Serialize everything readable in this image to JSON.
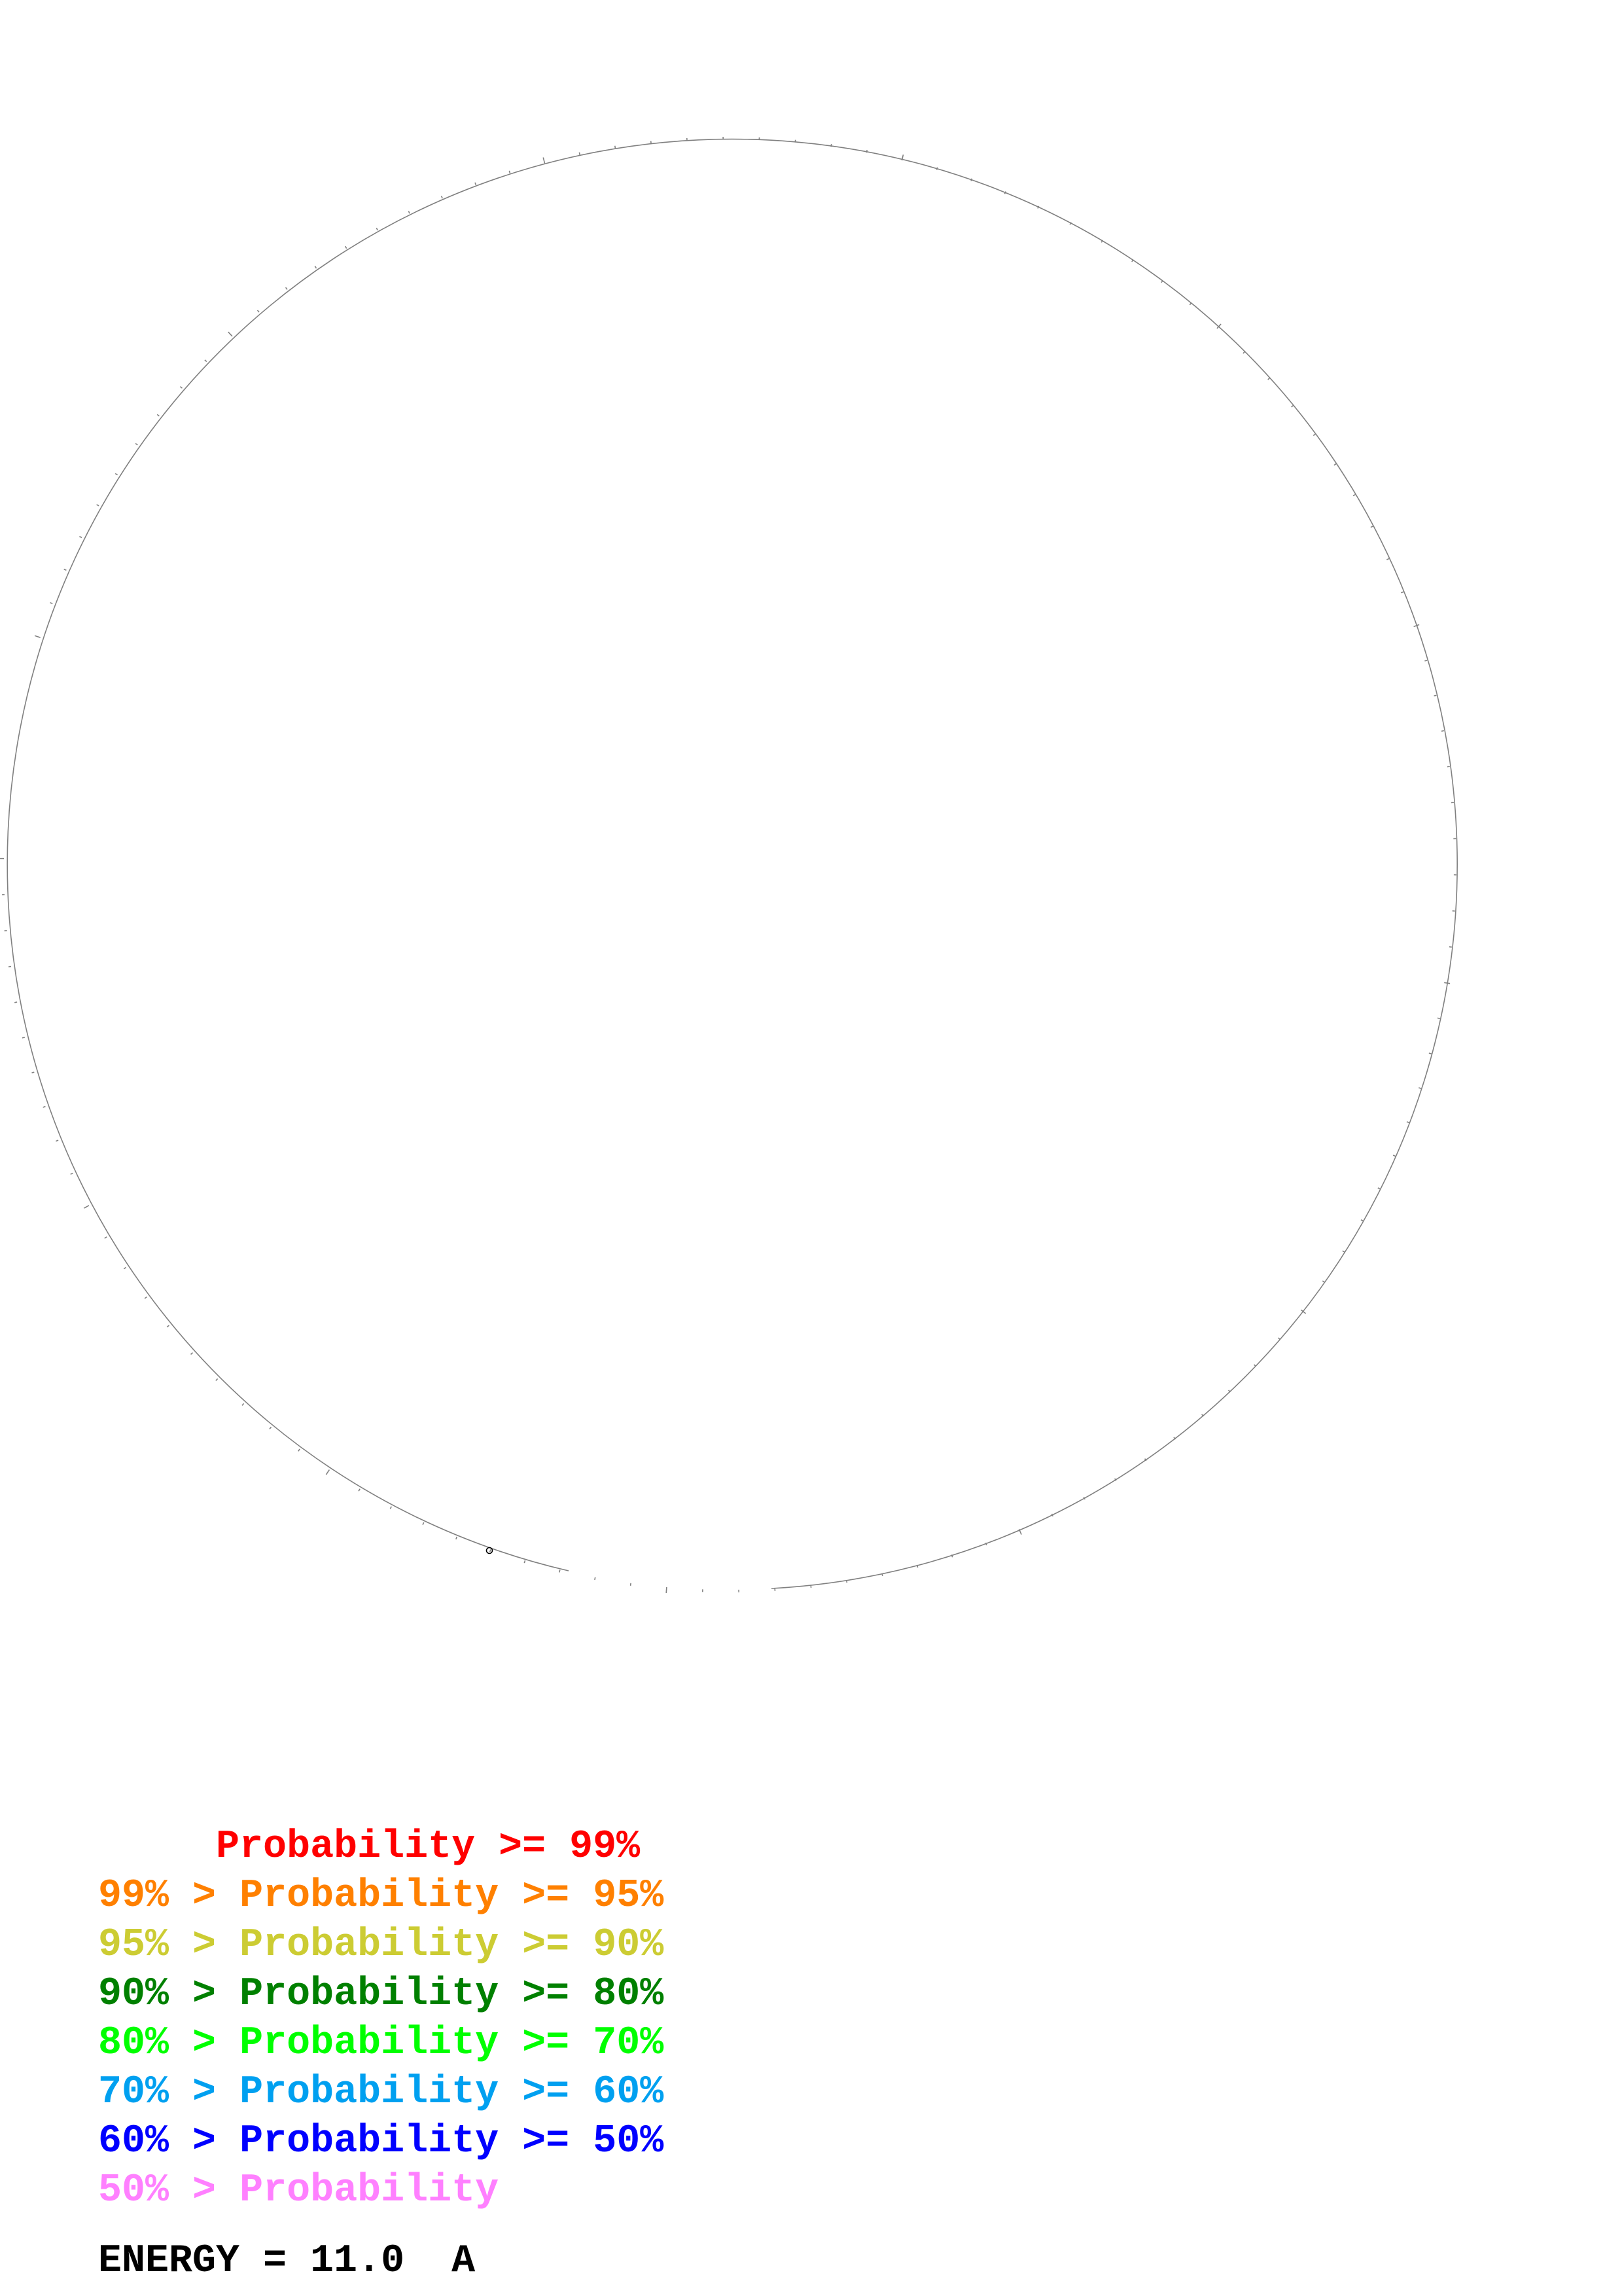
{
  "backbone_color": "#808080",
  "legend": [
    {
      "lower": "",
      "sep": "",
      "label": "Probability",
      "upper": ">= 99%",
      "color": "#ff0000"
    },
    {
      "lower": "99%",
      "sep": ">",
      "label": "Probability",
      "upper": ">= 95%",
      "color": "#ff8000"
    },
    {
      "lower": "95%",
      "sep": ">",
      "label": "Probability",
      "upper": ">= 90%",
      "color": "#cccc33"
    },
    {
      "lower": "90%",
      "sep": ">",
      "label": "Probability",
      "upper": ">= 80%",
      "color": "#008000"
    },
    {
      "lower": "80%",
      "sep": ">",
      "label": "Probability",
      "upper": ">= 70%",
      "color": "#00ff00"
    },
    {
      "lower": "70%",
      "sep": ">",
      "label": "Probability",
      "upper": ">= 60%",
      "color": "#00a0f0"
    },
    {
      "lower": "60%",
      "sep": ">",
      "label": "Probability",
      "upper": ">= 50%",
      "color": "#0000ff"
    },
    {
      "lower": "50%",
      "sep": ">",
      "label": "Probability",
      "upper": "",
      "color": "#ff80ff"
    }
  ],
  "energy": {
    "label": "ENERGY = 11.0",
    "unit": "A"
  }
}
